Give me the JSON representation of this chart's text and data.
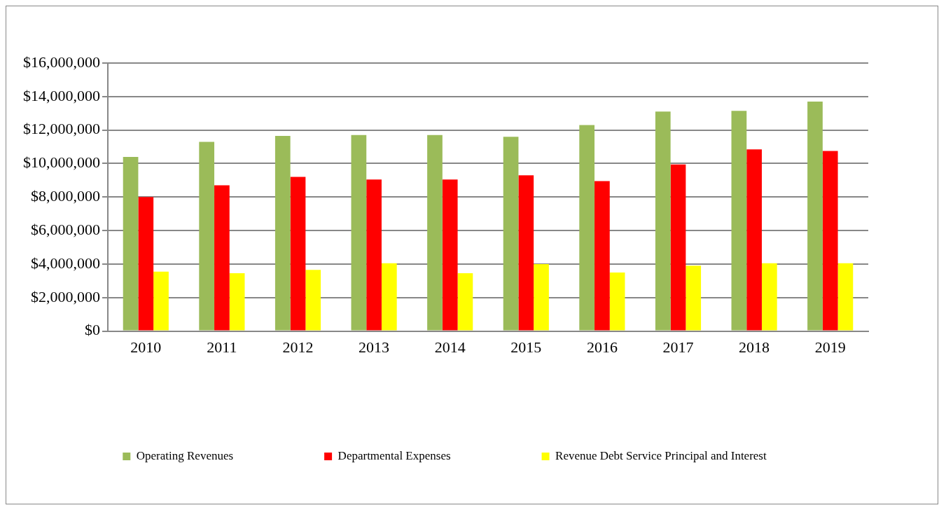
{
  "chart_data": {
    "type": "bar",
    "categories": [
      "2010",
      "2011",
      "2012",
      "2013",
      "2014",
      "2015",
      "2016",
      "2017",
      "2018",
      "2019"
    ],
    "series": [
      {
        "name": "Operating Revenues",
        "color": "#9bbb59",
        "values": [
          10400000,
          11300000,
          11650000,
          11700000,
          11700000,
          11600000,
          12300000,
          13100000,
          13150000,
          13700000
        ]
      },
      {
        "name": "Departmental Expenses",
        "color": "#ff0000",
        "values": [
          8000000,
          8700000,
          9200000,
          9050000,
          9050000,
          9300000,
          8950000,
          9950000,
          10850000,
          10750000
        ]
      },
      {
        "name": "Revenue Debt Service Principal and Interest",
        "color": "#ffff00",
        "values": [
          3550000,
          3450000,
          3650000,
          4050000,
          3450000,
          4000000,
          3500000,
          3900000,
          4050000,
          4050000
        ]
      }
    ],
    "ylim": [
      0,
      16000000
    ],
    "yticks": [
      {
        "value": 0,
        "label": "$0"
      },
      {
        "value": 2000000,
        "label": "$2,000,000"
      },
      {
        "value": 4000000,
        "label": "$4,000,000"
      },
      {
        "value": 6000000,
        "label": "$6,000,000"
      },
      {
        "value": 8000000,
        "label": "$8,000,000"
      },
      {
        "value": 10000000,
        "label": "$10,000,000"
      },
      {
        "value": 12000000,
        "label": "$12,000,000"
      },
      {
        "value": 14000000,
        "label": "$14,000,000"
      },
      {
        "value": 16000000,
        "label": "$16,000,000"
      }
    ],
    "grid": "y",
    "legend": "bottom"
  }
}
